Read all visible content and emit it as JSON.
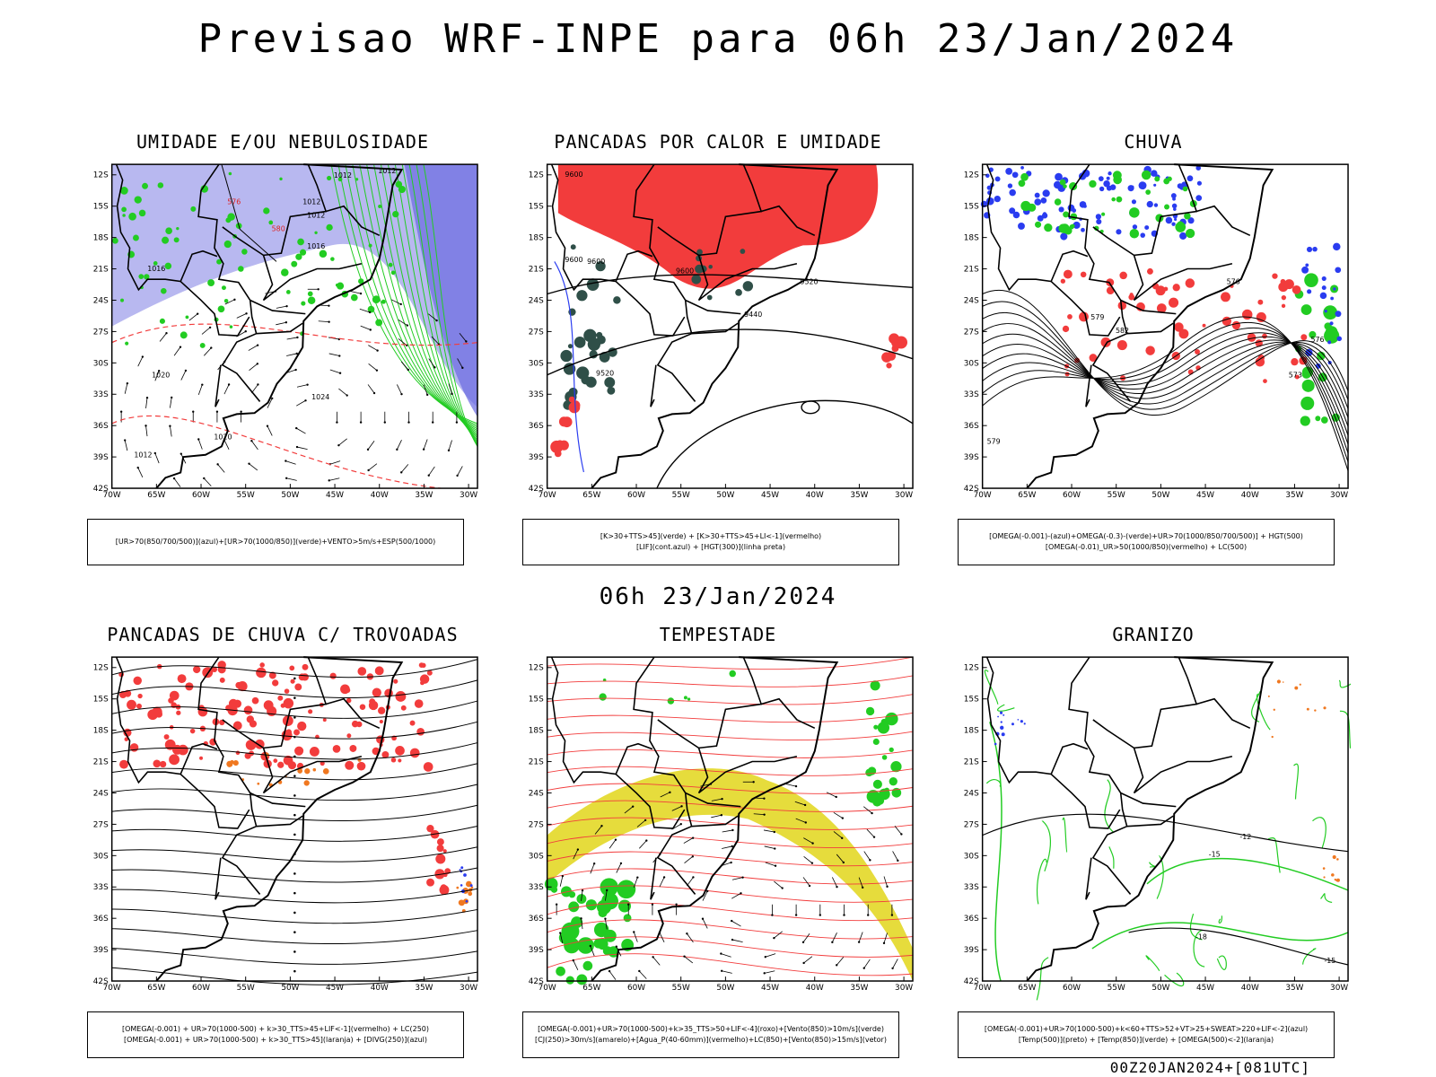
{
  "header": {
    "title": "Previsao WRF-INPE  para 06h 23/Jan/2024",
    "subtitle": "06h 23/Jan/2024",
    "footer": "00Z20JAN2024+[081UTC]"
  },
  "axes": {
    "lat_labels": [
      "12S",
      "15S",
      "18S",
      "21S",
      "24S",
      "27S",
      "30S",
      "33S",
      "36S",
      "39S",
      "42S"
    ],
    "lon_labels": [
      "70W",
      "65W",
      "60W",
      "55W",
      "50W",
      "45W",
      "40W",
      "35W",
      "30W"
    ]
  },
  "colors": {
    "red": "#f23c3c",
    "green": "#22cc22",
    "blue": "#2a3cf0",
    "lavender": "#b8b8f0",
    "darkgreen": "#2f4f48",
    "yellow": "#e6dc3c",
    "orange": "#f07820"
  },
  "panels": [
    {
      "title": "UMIDADE E/OU NEBULOSIDADE",
      "legend": [
        "[UR>70(850/700/500)](azul)+[UR>70(1000/850)](verde)+VENTO>5m/s+ESP(500/1000)"
      ],
      "labels": [
        "1012",
        "1012",
        "1012",
        "1012",
        "1016",
        "1016",
        "1020",
        "1024",
        "1020",
        "1012",
        "576",
        "580"
      ]
    },
    {
      "title": "PANCADAS POR CALOR E UMIDADE",
      "legend": [
        "[K>30+TTS>45](verde) + [K>30+TTS>45+LI<-1](vermelho)",
        "[LIF](cont.azul) + [HGT(300)](linha preta)"
      ],
      "labels": [
        "9600",
        "9600",
        "9600",
        "9600",
        "9520",
        "9440",
        "9520"
      ]
    },
    {
      "title": "CHUVA",
      "legend": [
        "[OMEGA(-0.001)-(azul)+OMEGA(-0.3)-(verde)+UR>70(1000/850/700/500)] + HGT(500)",
        "[OMEGA(-0.01)_UR>50(1000/850)(vermelho) + LC(500)"
      ],
      "labels": [
        "576",
        "579",
        "582",
        "576",
        "573",
        "579"
      ]
    },
    {
      "title": "PANCADAS DE CHUVA C/ TROVOADAS",
      "legend": [
        "[OMEGA(-0.001) + UR>70(1000-500) + k>30_TTS>45+LIF<-1](vermelho) + LC(250)",
        "[OMEGA(-0.001) + UR>70(1000-500) + k>30_TTS>45](laranja) + [DIVG(250)](azul)"
      ],
      "labels": []
    },
    {
      "title": "TEMPESTADE",
      "legend": [
        "[OMEGA(-0.001)+UR>70(1000-500)+k>35_TTS>50+LIF<-4](roxo)+[Vento(850)>10m/s](verde)",
        "[CJ(250)>30m/s](amarelo)+[Agua_P(40-60mm)](vermelho)+LC(850)+[Vento(850)>15m/s](vetor)"
      ],
      "labels": []
    },
    {
      "title": "GRANIZO",
      "legend": [
        "[OMEGA(-0.001)+UR>70(1000-500)+k<60+TTS>52+VT>25+SWEAT>220+LIF<-2](azul)",
        "[Temp(500)](preto) + [Temp(850)](verde) + [OMEGA(500)<-2](laranja)"
      ],
      "labels": [
        "-15",
        "-12",
        "-18",
        "-15"
      ]
    }
  ]
}
